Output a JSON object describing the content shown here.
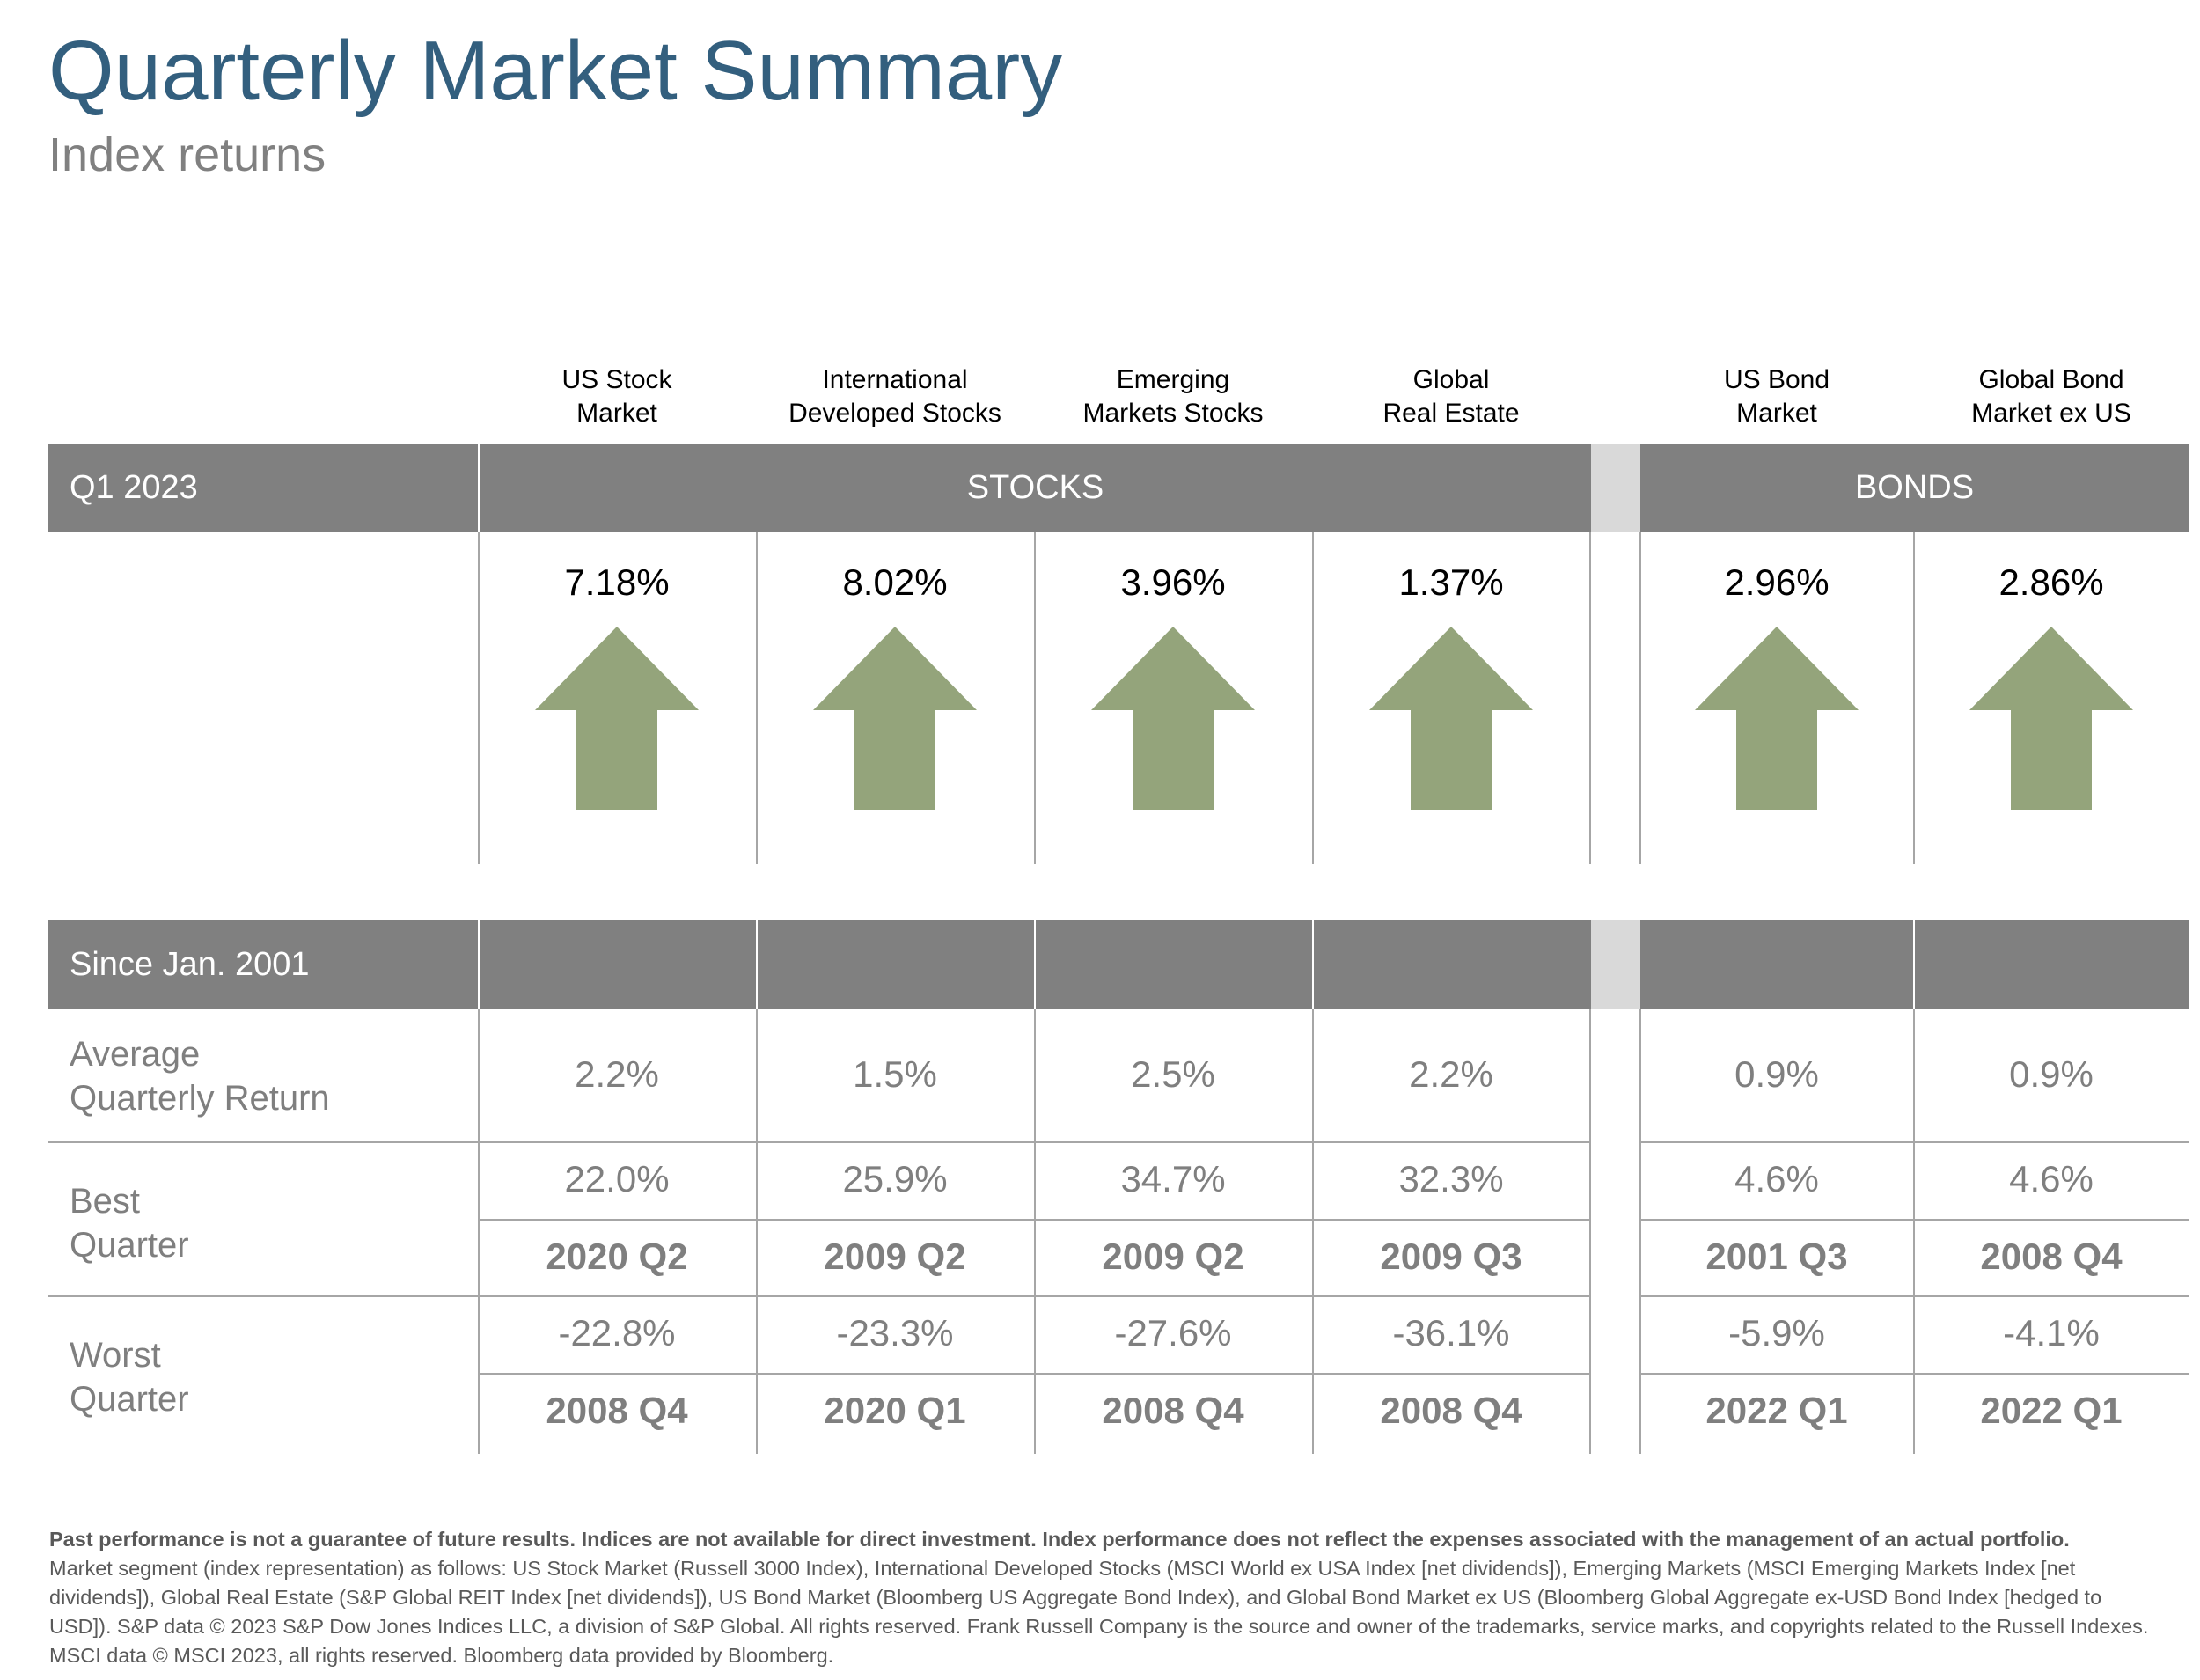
{
  "header": {
    "title": "Quarterly Market Summary",
    "subtitle": "Index returns"
  },
  "columns": [
    {
      "line1": "US Stock",
      "line2": "Market"
    },
    {
      "line1": "International",
      "line2": "Developed Stocks"
    },
    {
      "line1": "Emerging",
      "line2": "Markets Stocks"
    },
    {
      "line1": "Global",
      "line2": "Real Estate"
    },
    {
      "line1": "US Bond",
      "line2": "Market"
    },
    {
      "line1": "Global Bond",
      "line2": "Market ex US"
    }
  ],
  "quarter": {
    "label": "Q1 2023",
    "stocks_label": "STOCKS",
    "bonds_label": "BONDS",
    "returns": [
      "7.18%",
      "8.02%",
      "3.96%",
      "1.37%",
      "2.96%",
      "2.86%"
    ],
    "directions": [
      "up-arrow-icon",
      "up-arrow-icon",
      "up-arrow-icon",
      "up-arrow-icon",
      "up-arrow-icon",
      "up-arrow-icon"
    ],
    "arrow_color": "#94a47b"
  },
  "history": {
    "label": "Since Jan. 2001",
    "average": {
      "line1": "Average",
      "line2": "Quarterly Return",
      "values": [
        "2.2%",
        "1.5%",
        "2.5%",
        "2.2%",
        "0.9%",
        "0.9%"
      ]
    },
    "best": {
      "line1": "Best",
      "line2": "Quarter",
      "values": [
        "22.0%",
        "25.9%",
        "34.7%",
        "32.3%",
        "4.6%",
        "4.6%"
      ],
      "quarters": [
        "2020 Q2",
        "2009 Q2",
        "2009 Q2",
        "2009 Q3",
        "2001 Q3",
        "2008 Q4"
      ]
    },
    "worst": {
      "line1": "Worst",
      "line2": "Quarter",
      "values": [
        "-22.8%",
        "-23.3%",
        "-27.6%",
        "-36.1%",
        "-5.9%",
        "-4.1%"
      ],
      "quarters": [
        "2008 Q4",
        "2020 Q1",
        "2008 Q4",
        "2008 Q4",
        "2022 Q1",
        "2022 Q1"
      ]
    }
  },
  "footer": {
    "bold": "Past performance is not a guarantee of future results. Indices are not available for direct investment. Index performance does not reflect the expenses associated with the management of an actual portfolio.",
    "text": "Market segment (index representation) as follows: US Stock Market (Russell 3000 Index), International Developed Stocks (MSCI World ex USA Index [net dividends]), Emerging Markets (MSCI Emerging Markets Index [net dividends]), Global Real Estate (S&P Global REIT Index [net dividends]), US Bond Market (Bloomberg US Aggregate Bond Index), and Global Bond Market ex US (Bloomberg Global Aggregate ex-USD Bond Index [hedged to USD]). S&P data © 2023 S&P Dow Jones Indices LLC, a division of S&P Global. All rights reserved. Frank Russell Company is the source and owner of the trademarks, service marks, and copyrights related to the Russell Indexes. MSCI data © MSCI 2023, all rights reserved. Bloomberg data provided by Bloomberg."
  },
  "colors": {
    "title": "#335f7e",
    "band": "#808080",
    "band_gap": "#d9d9d9",
    "muted_text": "#7f7f7f"
  }
}
